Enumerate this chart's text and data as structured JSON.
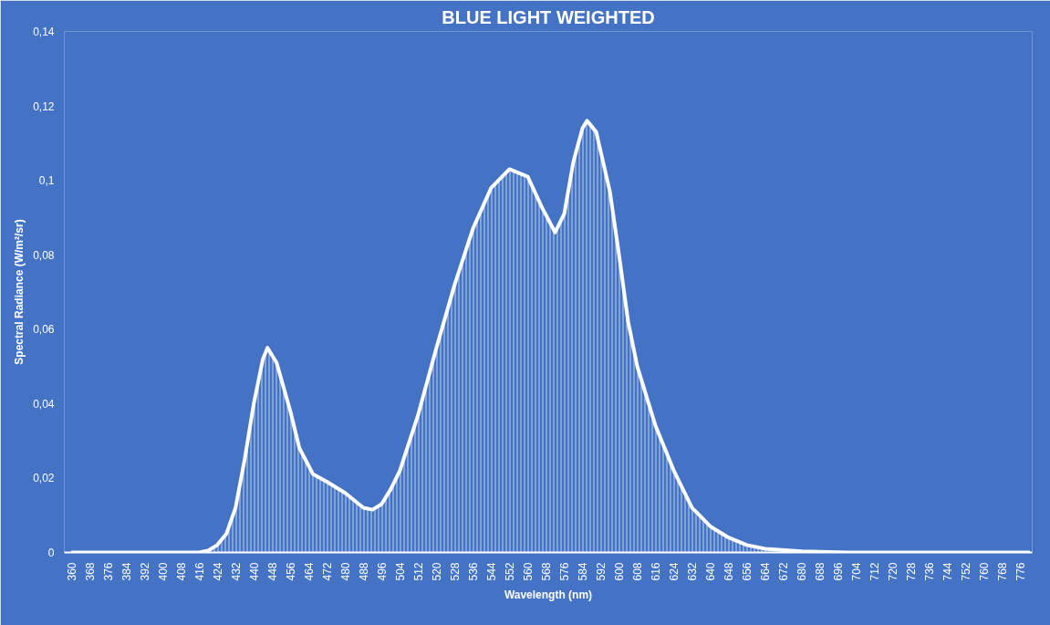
{
  "chart_data": {
    "type": "area",
    "title": "BLUE LIGHT WEIGHTED",
    "xlabel": "Wavelength (nm)",
    "ylabel": "Spectral Radiance (W/m²/sr)",
    "x": [
      360,
      380,
      400,
      416,
      420,
      424,
      428,
      432,
      436,
      440,
      444,
      446,
      450,
      456,
      460,
      466,
      472,
      480,
      488,
      492,
      496,
      500,
      504,
      512,
      520,
      528,
      536,
      544,
      552,
      560,
      566,
      572,
      576,
      580,
      584,
      586,
      590,
      596,
      600,
      604,
      608,
      616,
      624,
      632,
      640,
      648,
      656,
      664,
      680,
      700,
      720,
      740,
      760,
      780
    ],
    "series": [
      {
        "color": "#ffffff",
        "values": [
          0,
          0,
          0,
          0,
          0.0005,
          0.002,
          0.005,
          0.012,
          0.025,
          0.04,
          0.052,
          0.055,
          0.051,
          0.038,
          0.028,
          0.021,
          0.019,
          0.016,
          0.012,
          0.0115,
          0.013,
          0.017,
          0.022,
          0.037,
          0.055,
          0.072,
          0.087,
          0.098,
          0.103,
          0.101,
          0.093,
          0.086,
          0.091,
          0.105,
          0.114,
          0.116,
          0.113,
          0.097,
          0.08,
          0.062,
          0.05,
          0.034,
          0.022,
          0.012,
          0.007,
          0.004,
          0.002,
          0.001,
          0.0003,
          0,
          0,
          0,
          0,
          0
        ]
      }
    ],
    "xlim": [
      357,
      781
    ],
    "xticks": [
      360,
      368,
      376,
      384,
      392,
      400,
      408,
      416,
      424,
      432,
      440,
      448,
      456,
      464,
      472,
      480,
      488,
      496,
      504,
      512,
      520,
      528,
      536,
      544,
      552,
      560,
      568,
      576,
      584,
      592,
      600,
      608,
      616,
      624,
      632,
      640,
      648,
      656,
      664,
      672,
      680,
      688,
      696,
      704,
      712,
      720,
      728,
      736,
      744,
      752,
      760,
      768,
      776
    ],
    "ylim": [
      0,
      0.14
    ],
    "yticks": [
      0,
      {
        "value": 0.02,
        "label": "0,02"
      },
      {
        "value": 0.04,
        "label": "0,04"
      },
      {
        "value": 0.06,
        "label": "0,06"
      },
      {
        "value": 0.08,
        "label": "0,08"
      },
      {
        "value": 0.1,
        "label": "0,1"
      },
      {
        "value": 0.12,
        "label": "0,12"
      },
      {
        "value": 0.14,
        "label": "0,14"
      }
    ],
    "grid": false,
    "line_style": "solid"
  }
}
